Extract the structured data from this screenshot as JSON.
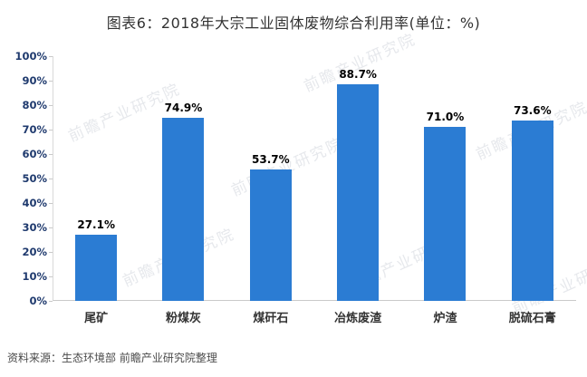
{
  "title": "图表6：2018年大宗工业固体废物综合利用率(单位：%)",
  "source_note": "资料来源：生态环境部 前瞻产业研究院整理",
  "watermark": {
    "text": "前瞻产业研究院"
  },
  "colors": {
    "bar": "#2b7cd3",
    "axis_label": "#1f3a6e",
    "value_label": "#000000",
    "title_text": "#333333"
  },
  "chart_data": {
    "type": "bar",
    "title": "图表6：2018年大宗工业固体废物综合利用率(单位：%)",
    "categories": [
      "尾矿",
      "粉煤灰",
      "煤矸石",
      "冶炼废渣",
      "炉渣",
      "脱硫石膏"
    ],
    "values": [
      27.1,
      74.9,
      53.7,
      88.7,
      71.0,
      73.6
    ],
    "value_labels": [
      "27.1%",
      "74.9%",
      "53.7%",
      "88.7%",
      "71.0%",
      "73.6%"
    ],
    "xlabel": "",
    "ylabel": "",
    "ylim": [
      0,
      100
    ],
    "ytick_step": 10,
    "ytick_suffix": "%",
    "grid": false,
    "legend": false
  }
}
